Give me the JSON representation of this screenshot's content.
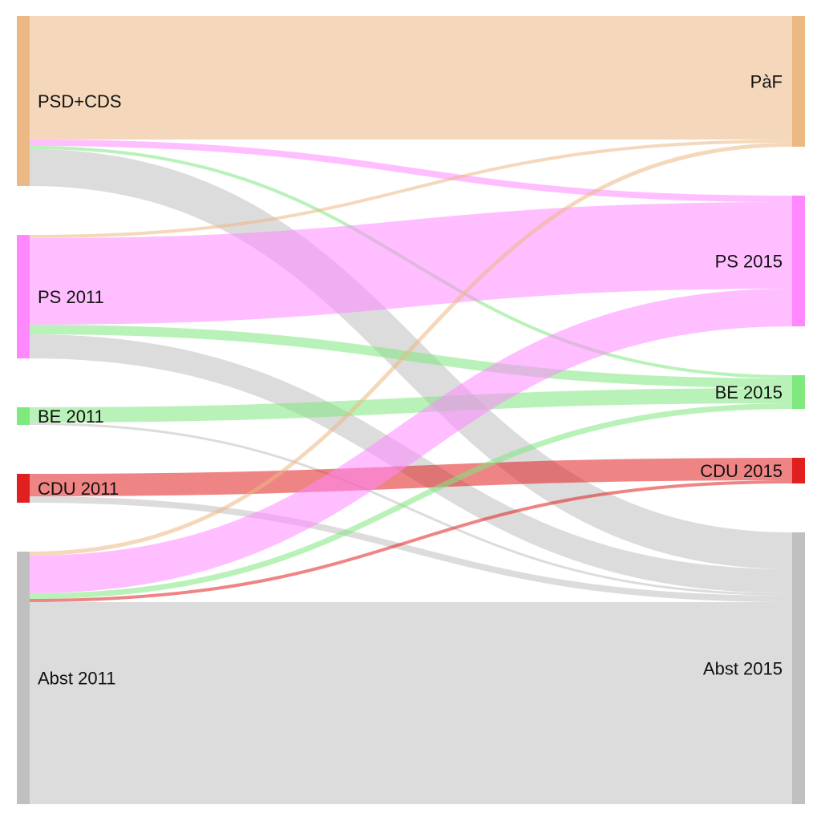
{
  "chart_data": {
    "type": "sankey",
    "title": "",
    "units": "",
    "sources": [
      {
        "id": "psd_cds_2011",
        "label": "PSD+CDS",
        "color": "#ecb884"
      },
      {
        "id": "ps_2011",
        "label": "PS 2011",
        "color": "#ff88ff"
      },
      {
        "id": "be_2011",
        "label": "BE 2011",
        "color": "#7fe87f"
      },
      {
        "id": "cdu_2011",
        "label": "CDU 2011",
        "color": "#e21f1f"
      },
      {
        "id": "abst_2011",
        "label": "Abst 2011",
        "color": "#c0c0c0"
      }
    ],
    "targets": [
      {
        "id": "paf_2015",
        "label": "PàF",
        "color": "#ecb884"
      },
      {
        "id": "ps_2015",
        "label": "PS 2015",
        "color": "#ff88ff"
      },
      {
        "id": "be_2015",
        "label": "BE 2015",
        "color": "#7fe87f"
      },
      {
        "id": "cdu_2015",
        "label": "CDU 2015",
        "color": "#e21f1f"
      },
      {
        "id": "abst_2015",
        "label": "Abst 2015",
        "color": "#c0c0c0"
      }
    ],
    "links": [
      {
        "source": "psd_cds_2011",
        "target": "paf_2015",
        "value": 154,
        "color": "#ecb884"
      },
      {
        "source": "psd_cds_2011",
        "target": "ps_2015",
        "value": 8,
        "color": "#ff88ff"
      },
      {
        "source": "psd_cds_2011",
        "target": "be_2015",
        "value": 4,
        "color": "#7fe87f"
      },
      {
        "source": "psd_cds_2011",
        "target": "abst_2015",
        "value": 46,
        "color": "#c0c0c0"
      },
      {
        "source": "ps_2011",
        "target": "paf_2015",
        "value": 4,
        "color": "#ecb884"
      },
      {
        "source": "ps_2011",
        "target": "ps_2015",
        "value": 108,
        "color": "#ff88ff"
      },
      {
        "source": "ps_2011",
        "target": "be_2015",
        "value": 12,
        "color": "#7fe87f"
      },
      {
        "source": "ps_2011",
        "target": "abst_2015",
        "value": 30,
        "color": "#c0c0c0"
      },
      {
        "source": "be_2011",
        "target": "be_2015",
        "value": 19,
        "color": "#7fe87f"
      },
      {
        "source": "be_2011",
        "target": "abst_2015",
        "value": 3,
        "color": "#c0c0c0"
      },
      {
        "source": "cdu_2011",
        "target": "cdu_2015",
        "value": 28,
        "color": "#e21f1f"
      },
      {
        "source": "cdu_2011",
        "target": "abst_2015",
        "value": 8,
        "color": "#c0c0c0"
      },
      {
        "source": "abst_2011",
        "target": "paf_2015",
        "value": 5,
        "color": "#ecb884"
      },
      {
        "source": "abst_2011",
        "target": "ps_2015",
        "value": 47,
        "color": "#ff88ff"
      },
      {
        "source": "abst_2011",
        "target": "be_2015",
        "value": 7,
        "color": "#7fe87f"
      },
      {
        "source": "abst_2011",
        "target": "cdu_2015",
        "value": 4,
        "color": "#e21f1f"
      },
      {
        "source": "abst_2011",
        "target": "abst_2015",
        "value": 252,
        "color": "#c0c0c0"
      }
    ]
  }
}
